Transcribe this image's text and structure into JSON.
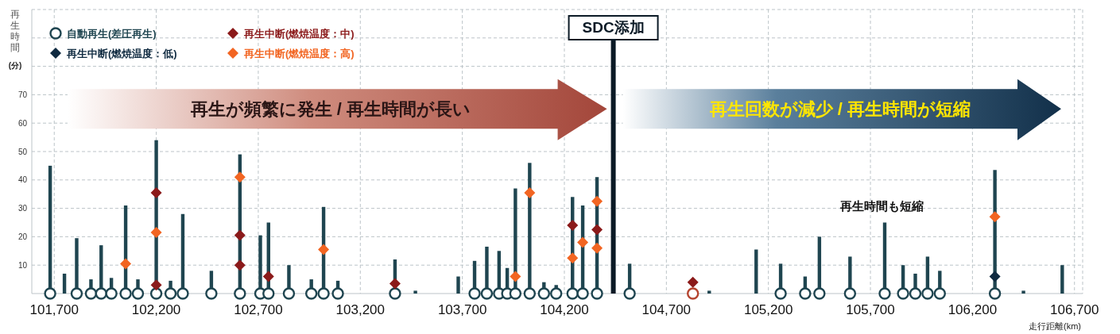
{
  "chart_data": {
    "type": "bar",
    "ylabel": "再生時間(分)",
    "xlabel": "走行距離(km)",
    "xlim": [
      101590,
      106740
    ],
    "xticks": [
      {
        "value": 101700,
        "label": "101,700"
      },
      {
        "value": 102200,
        "label": "102,200"
      },
      {
        "value": 102700,
        "label": "102,700"
      },
      {
        "value": 103200,
        "label": "103,200"
      },
      {
        "value": 103700,
        "label": "103,700"
      },
      {
        "value": 104200,
        "label": "104,200"
      },
      {
        "value": 104700,
        "label": "104,700"
      },
      {
        "value": 105200,
        "label": "105,200"
      },
      {
        "value": 105700,
        "label": "105,700"
      },
      {
        "value": 106200,
        "label": "106,200"
      },
      {
        "value": 106700,
        "label": "106,700"
      }
    ],
    "ylim": [
      0,
      100
    ],
    "yticks": [
      10,
      20,
      30,
      40,
      50,
      60,
      70,
      {
        "value": 80,
        "label": null
      },
      {
        "value": 90,
        "label": null
      },
      {
        "value": 100,
        "label": null
      }
    ],
    "grid": true,
    "legend": "top left",
    "ref_lines": [
      {
        "axis": "x",
        "value": 104440,
        "label": "SDC添加",
        "color": "#0b1a26"
      }
    ],
    "annotations": [
      "再生が頻繁に発生 / 再生時間が長い",
      "再生回数が減少 / 再生時間が短縮",
      "再生時間も短縮"
    ],
    "series": [
      {
        "color": "#1f4550",
        "x": [
          101680,
          101750,
          101810,
          101880,
          101930,
          101980,
          102050,
          102110,
          102200,
          102270,
          102330,
          102470,
          102610,
          102710,
          102750,
          102850,
          102960,
          103020,
          103090,
          103370,
          103470,
          103680,
          103760,
          103820,
          103880,
          103920,
          103960,
          104030,
          104100,
          104160,
          104240,
          104290,
          104360,
          104520,
          104910,
          105140,
          105260,
          105380,
          105450,
          105600,
          105770,
          105860,
          105920,
          105980,
          106040,
          106310,
          106450,
          106640
        ],
        "values": [
          45,
          7,
          19.5,
          5,
          17,
          5.5,
          31,
          5,
          54,
          4.5,
          28,
          8,
          49,
          20.5,
          25,
          10,
          5,
          30.5,
          4.5,
          12,
          1,
          6,
          11.5,
          16.5,
          15,
          9,
          37,
          46,
          4,
          3,
          34,
          31,
          41,
          10.5,
          1,
          15.5,
          10.5,
          6,
          20,
          13,
          25,
          10,
          7,
          13,
          8,
          43.5,
          1,
          10
        ]
      },
      {
        "type": "scatter",
        "name": "自動再生(差圧再生)",
        "marker": "circle",
        "color": "#1f4550",
        "x": [
          101680,
          101810,
          101880,
          101930,
          101980,
          102050,
          102110,
          102200,
          102270,
          102330,
          102470,
          102610,
          102710,
          102750,
          102850,
          102960,
          103020,
          103090,
          103370,
          103760,
          103820,
          103880,
          103920,
          103960,
          104030,
          104100,
          104160,
          104240,
          104290,
          104360,
          104520,
          104830,
          105260,
          105380,
          105450,
          105600,
          105770,
          105860,
          105920,
          105980,
          106040,
          106310
        ],
        "values": [
          0,
          0,
          0,
          0,
          0,
          0,
          0,
          0,
          0,
          0,
          0,
          0,
          0,
          0,
          0,
          0,
          0,
          0,
          0,
          0,
          0,
          0,
          0,
          0,
          0,
          0,
          0,
          0,
          0,
          0,
          0,
          0,
          0,
          0,
          0,
          0,
          0,
          0,
          0,
          0,
          0,
          0
        ],
        "colors": [
          "#1f4550",
          "#1f4550",
          "#1f4550",
          "#1f4550",
          "#1f4550",
          "#1f4550",
          "#1f4550",
          "#1f4550",
          "#1f4550",
          "#1f4550",
          "#1f4550",
          "#1f4550",
          "#1f4550",
          "#1f4550",
          "#1f4550",
          "#1f4550",
          "#1f4550",
          "#1f4550",
          "#1f4550",
          "#1f4550",
          "#1f4550",
          "#1f4550",
          "#1f4550",
          "#1f4550",
          "#1f4550",
          "#1f4550",
          "#1f4550",
          "#1f4550",
          "#1f4550",
          "#1f4550",
          "#1f4550",
          "#b5442f",
          "#1f4550",
          "#1f4550",
          "#1f4550",
          "#1f4550",
          "#1f4550",
          "#1f4550",
          "#1f4550",
          "#1f4550",
          "#1f4550",
          "#1f4550"
        ]
      },
      {
        "type": "scatter",
        "name": "再生中断(燃焼温度：低)",
        "marker": "diamond",
        "color": "#0f2a40",
        "x": [
          106310
        ],
        "values": [
          6
        ]
      },
      {
        "type": "scatter",
        "name": "再生中断(燃焼温度：中)",
        "marker": "diamond",
        "color": "#8b1a1a",
        "x": [
          102200,
          102200,
          102610,
          102610,
          102750,
          103370,
          104240,
          104360,
          104830
        ],
        "values": [
          35.5,
          3,
          20.5,
          10,
          6,
          3.5,
          24,
          22.5,
          4
        ]
      },
      {
        "type": "scatter",
        "name": "再生中断(燃焼温度：高)",
        "marker": "diamond",
        "color": "#f26522",
        "x": [
          102050,
          102200,
          102610,
          103020,
          103960,
          104030,
          104240,
          104290,
          104360,
          104360,
          106310
        ],
        "values": [
          10.5,
          21.5,
          41,
          15.5,
          6,
          35.5,
          12.5,
          18,
          32.5,
          16,
          27
        ]
      }
    ]
  }
}
